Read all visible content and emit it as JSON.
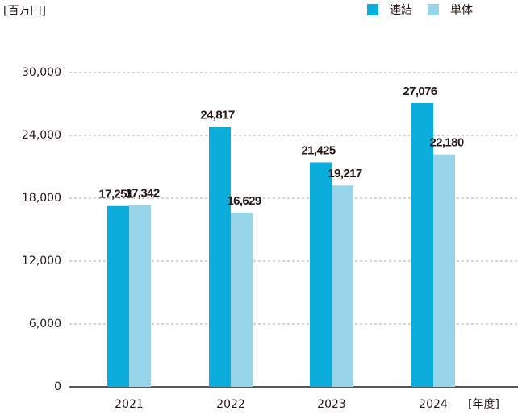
{
  "chart_data": {
    "type": "bar",
    "y_unit": "[百万円]",
    "x_unit": "[年度]",
    "categories": [
      "2021",
      "2022",
      "2023",
      "2024"
    ],
    "series": [
      {
        "name": "連結",
        "color": "#0aaddc",
        "values": [
          17251,
          24817,
          21425,
          27076
        ],
        "value_labels": [
          "17,251",
          "24,817",
          "21,425",
          "27,076"
        ]
      },
      {
        "name": "単体",
        "color": "#96d5ea",
        "values": [
          17342,
          16629,
          19217,
          22180
        ],
        "value_labels": [
          "17,342",
          "16,629",
          "19,217",
          "22,180"
        ]
      }
    ],
    "ylim": [
      0,
      30000
    ],
    "yticks": [
      0,
      {
        "value": 6000,
        "label": "6,000"
      },
      {
        "value": 12000,
        "label": "12,000"
      },
      {
        "value": 18000,
        "label": "18,000"
      },
      {
        "value": 24000,
        "label": "24,000"
      },
      {
        "value": 30000,
        "label": "30,000"
      }
    ],
    "grid": true
  }
}
